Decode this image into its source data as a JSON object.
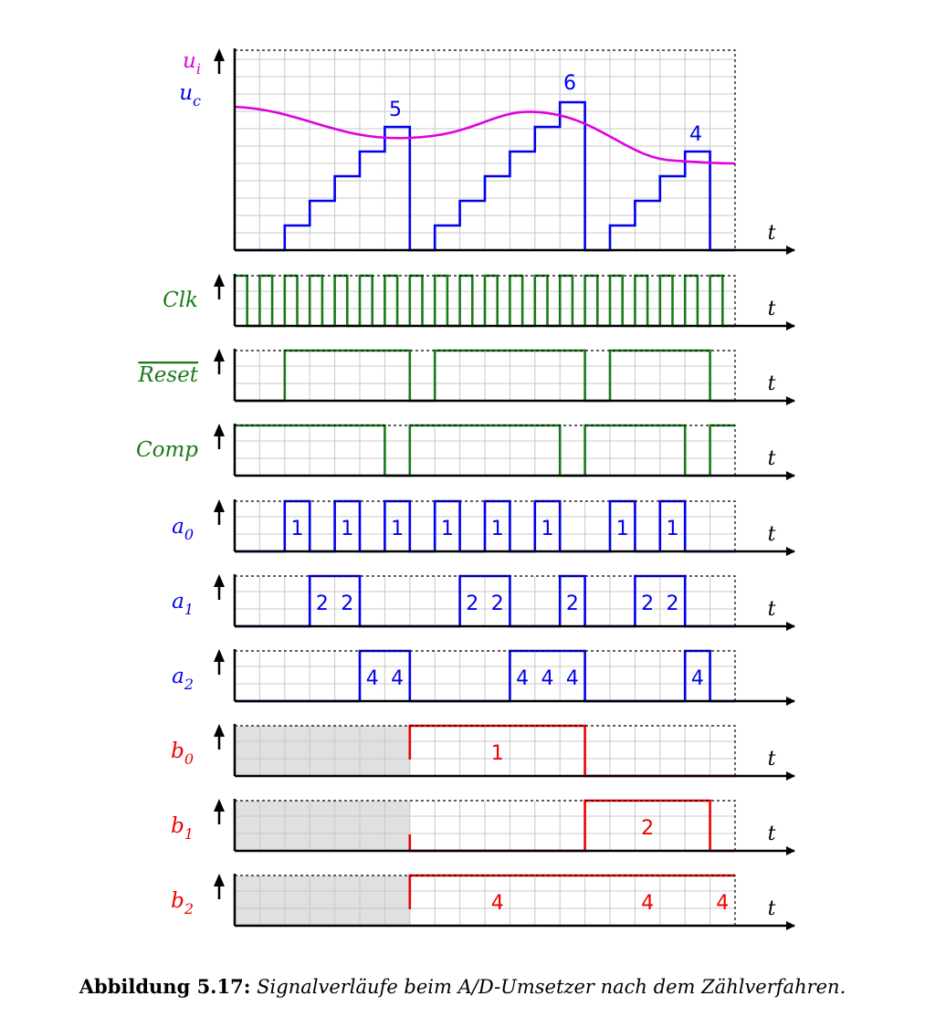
{
  "colors": {
    "ui": "#e000e0",
    "uc": "#0000ee",
    "control": "#1a7a1a",
    "bits": "#0000ee",
    "outputs": "#ee0000",
    "grid": "#c8c8c8",
    "shade": "#e0e0e0"
  },
  "axis_label": "t",
  "panel1": {
    "label_ui": "u",
    "label_ui_sub": "i",
    "label_uc": "u",
    "label_uc_sub": "c",
    "count_labels": [
      "5",
      "6",
      "4"
    ]
  },
  "signals": {
    "clk": "Clk",
    "reset": "Reset",
    "comp": "Comp",
    "a0": "a",
    "a0_sub": "0",
    "a1": "a",
    "a1_sub": "1",
    "a2": "a",
    "a2_sub": "2",
    "b0": "b",
    "b0_sub": "0",
    "b1": "b",
    "b1_sub": "1",
    "b2": "b",
    "b2_sub": "2"
  },
  "pulse_labels": {
    "a0": [
      "1",
      "1",
      "1",
      "1",
      "1",
      "1",
      "1",
      "1"
    ],
    "a1": [
      "2",
      "2",
      "2",
      "2",
      "2",
      "2",
      "2"
    ],
    "a2": [
      "4",
      "4",
      "4",
      "4",
      "4",
      "4"
    ],
    "b0": [
      "1"
    ],
    "b1": [
      "2"
    ],
    "b2": [
      "4",
      "4",
      "4"
    ]
  },
  "caption": {
    "prefix": "Abbildung 5.17:",
    "text": "Signalverläufe beim A/D-Umsetzer nach dem Zählverfahren."
  }
}
